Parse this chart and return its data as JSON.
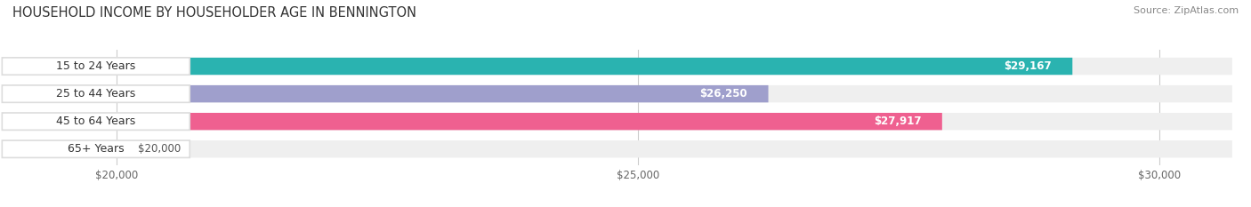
{
  "title": "HOUSEHOLD INCOME BY HOUSEHOLDER AGE IN BENNINGTON",
  "source": "Source: ZipAtlas.com",
  "categories": [
    "15 to 24 Years",
    "25 to 44 Years",
    "45 to 64 Years",
    "65+ Years"
  ],
  "values": [
    29167,
    26250,
    27917,
    20000
  ],
  "bar_colors": [
    "#2ab3b0",
    "#9f9fcc",
    "#ef6090",
    "#f5c89a"
  ],
  "bar_bg_color": "#efefef",
  "x_min": 19000,
  "x_max": 30700,
  "tick_values": [
    20000,
    25000,
    30000
  ],
  "tick_labels": [
    "$20,000",
    "$25,000",
    "$30,000"
  ],
  "value_labels": [
    "$29,167",
    "$26,250",
    "$27,917",
    "$20,000"
  ],
  "value_inside": [
    true,
    true,
    true,
    false
  ],
  "title_fontsize": 10.5,
  "source_fontsize": 8,
  "label_fontsize": 9,
  "tick_fontsize": 8.5,
  "value_fontsize": 8.5
}
